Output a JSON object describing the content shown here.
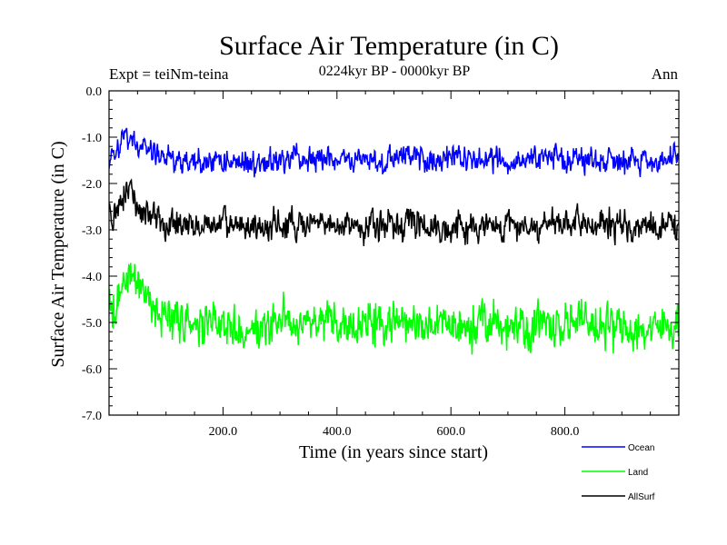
{
  "chart_data": {
    "type": "line",
    "title": "Surface Air Temperature (in C)",
    "subtitle": "0224kyr BP - 0000kyr BP",
    "experiment": "Expt = teiNm-teina",
    "season": "Ann",
    "xlabel": "Time (in years since start)",
    "ylabel": "Surface Air Temperature (in C)",
    "xlim": [
      0,
      1000
    ],
    "ylim": [
      -7.0,
      0.0
    ],
    "x_ticks": [
      200,
      400,
      600,
      800
    ],
    "x_tick_labels": [
      "200.0",
      "400.0",
      "600.0",
      "800.0"
    ],
    "y_ticks": [
      0,
      -1,
      -2,
      -3,
      -4,
      -5,
      -6,
      -7
    ],
    "y_tick_labels": [
      "0.0",
      "-1.0",
      "-2.0",
      "-3.0",
      "-4.0",
      "-5.0",
      "-6.0",
      "-7.0"
    ],
    "grid": false,
    "legend_position": "bottom-right",
    "series": [
      {
        "name": "Ocean",
        "color": "#0000ff",
        "x": [
          0,
          10,
          20,
          30,
          40,
          50,
          60,
          70,
          80,
          90,
          100,
          120,
          140,
          160,
          180,
          200,
          250,
          300,
          350,
          400,
          450,
          500,
          535,
          550,
          600,
          650,
          700,
          750,
          800,
          850,
          900,
          950,
          1000
        ],
        "values": [
          -1.6,
          -1.35,
          -1.15,
          -0.95,
          -1.1,
          -1.25,
          -1.2,
          -1.3,
          -1.35,
          -1.45,
          -1.45,
          -1.5,
          -1.55,
          -1.55,
          -1.5,
          -1.5,
          -1.55,
          -1.5,
          -1.5,
          -1.5,
          -1.5,
          -1.5,
          -1.3,
          -1.45,
          -1.5,
          -1.5,
          -1.5,
          -1.45,
          -1.45,
          -1.5,
          -1.45,
          -1.5,
          -1.5
        ],
        "noise": 0.13
      },
      {
        "name": "Land",
        "color": "#00ff00",
        "x": [
          0,
          10,
          20,
          30,
          40,
          50,
          60,
          70,
          80,
          90,
          100,
          120,
          140,
          160,
          180,
          200,
          250,
          300,
          310,
          320,
          350,
          400,
          450,
          500,
          550,
          600,
          650,
          700,
          750,
          800,
          850,
          900,
          950,
          1000
        ],
        "values": [
          -4.6,
          -4.8,
          -4.3,
          -3.9,
          -4.1,
          -4.25,
          -4.4,
          -4.55,
          -4.7,
          -4.8,
          -4.9,
          -4.95,
          -5.05,
          -5.1,
          -5.1,
          -5.1,
          -5.1,
          -5.0,
          -4.6,
          -5.05,
          -5.0,
          -5.05,
          -5.05,
          -5.0,
          -5.05,
          -5.1,
          -5.05,
          -5.05,
          -5.05,
          -5.0,
          -5.05,
          -5.1,
          -5.2,
          -5.0
        ],
        "noise": 0.22
      },
      {
        "name": "AllSurf",
        "color": "#000000",
        "x": [
          0,
          10,
          20,
          30,
          40,
          50,
          60,
          70,
          80,
          90,
          100,
          120,
          140,
          160,
          180,
          200,
          250,
          300,
          350,
          400,
          450,
          500,
          535,
          550,
          600,
          650,
          700,
          750,
          800,
          850,
          900,
          950,
          1000
        ],
        "values": [
          -2.6,
          -2.75,
          -2.4,
          -2.15,
          -2.3,
          -2.5,
          -2.6,
          -2.65,
          -2.7,
          -2.75,
          -2.85,
          -2.9,
          -2.9,
          -2.95,
          -2.9,
          -2.9,
          -2.95,
          -2.9,
          -2.9,
          -2.9,
          -2.9,
          -2.9,
          -2.75,
          -2.9,
          -2.95,
          -2.95,
          -2.9,
          -2.9,
          -2.9,
          -2.9,
          -2.9,
          -2.95,
          -2.9
        ],
        "noise": 0.15
      }
    ]
  }
}
